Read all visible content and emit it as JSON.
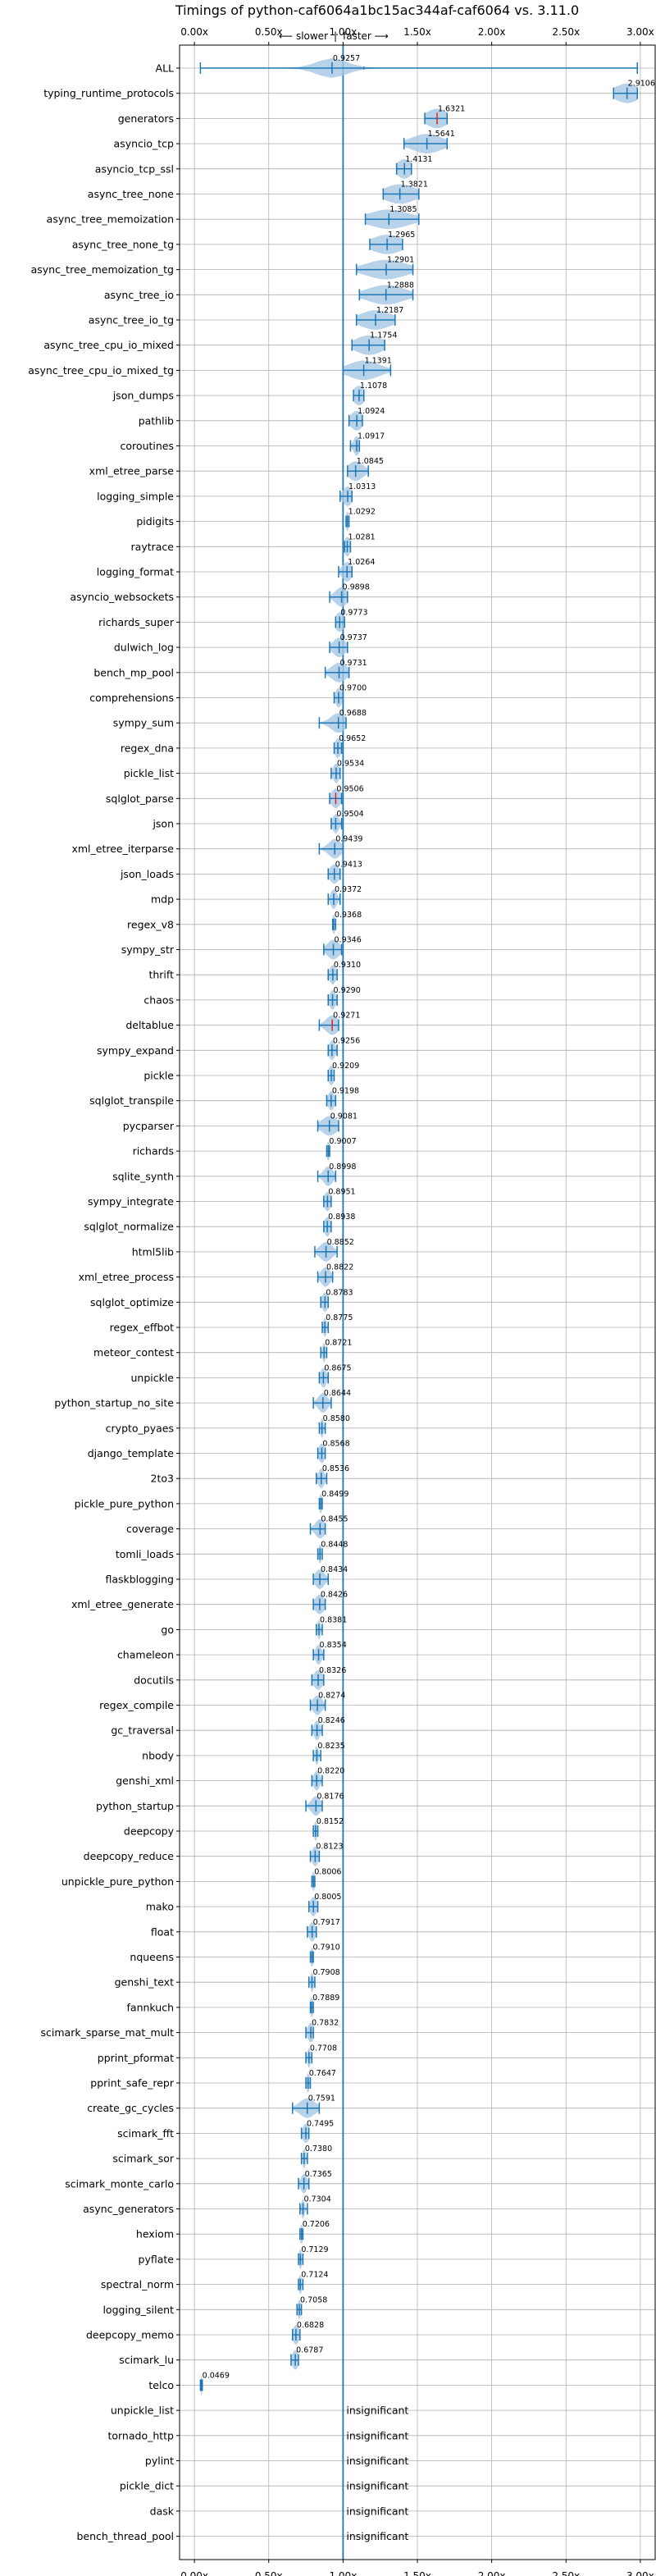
{
  "chart_data": {
    "type": "violin",
    "title": "Timings of python-caf6064a1bc15ac344af-caf6064 vs. 3.11.0",
    "subtitle_slower": "⟵ slower",
    "subtitle_separator": "|",
    "subtitle_faster": "faster ⟶",
    "xlim": [
      -0.1,
      3.1
    ],
    "xticks": [
      0.0,
      0.5,
      1.0,
      1.5,
      2.0,
      2.5,
      3.0
    ],
    "xtick_labels": [
      "0.00x",
      "0.50x",
      "1.00x",
      "1.50x",
      "2.00x",
      "2.50x",
      "3.00x"
    ],
    "reference_line": 1.0,
    "grid": true,
    "insignificant_label": "insignificant",
    "benchmarks": [
      {
        "name": "ALL",
        "value": 0.9257,
        "label": "0.9257",
        "lo": 0.04,
        "hi": 2.98,
        "spread": 0.1,
        "outliers": [
          0.9257,
          1.14
        ]
      },
      {
        "name": "typing_runtime_protocols",
        "value": 2.9106,
        "label": "2.9106",
        "lo": 2.82,
        "hi": 2.98,
        "spread": 0.08
      },
      {
        "name": "generators",
        "value": 1.6321,
        "label": "1.6321",
        "lo": 1.55,
        "hi": 1.7,
        "spread": 0.07,
        "red": true
      },
      {
        "name": "asyncio_tcp",
        "value": 1.5641,
        "label": "1.5641",
        "lo": 1.41,
        "hi": 1.7,
        "spread": 0.1
      },
      {
        "name": "asyncio_tcp_ssl",
        "value": 1.4131,
        "label": "1.4131",
        "lo": 1.36,
        "hi": 1.46,
        "spread": 0.05
      },
      {
        "name": "async_tree_none",
        "value": 1.3821,
        "label": "1.3821",
        "lo": 1.27,
        "hi": 1.51,
        "spread": 0.1
      },
      {
        "name": "async_tree_memoization",
        "value": 1.3085,
        "label": "1.3085",
        "lo": 1.15,
        "hi": 1.51,
        "spread": 0.13
      },
      {
        "name": "async_tree_none_tg",
        "value": 1.2965,
        "label": "1.2965",
        "lo": 1.18,
        "hi": 1.4,
        "spread": 0.1
      },
      {
        "name": "async_tree_memoization_tg",
        "value": 1.2901,
        "label": "1.2901",
        "lo": 1.09,
        "hi": 1.47,
        "spread": 0.13
      },
      {
        "name": "async_tree_io",
        "value": 1.2888,
        "label": "1.2888",
        "lo": 1.11,
        "hi": 1.47,
        "spread": 0.12
      },
      {
        "name": "async_tree_io_tg",
        "value": 1.2187,
        "label": "1.2187",
        "lo": 1.09,
        "hi": 1.35,
        "spread": 0.1
      },
      {
        "name": "async_tree_cpu_io_mixed",
        "value": 1.1754,
        "label": "1.1754",
        "lo": 1.06,
        "hi": 1.28,
        "spread": 0.09
      },
      {
        "name": "async_tree_cpu_io_mixed_tg",
        "value": 1.1391,
        "label": "1.1391",
        "lo": 1.0,
        "hi": 1.32,
        "spread": 0.1
      },
      {
        "name": "json_dumps",
        "value": 1.1078,
        "label": "1.1078",
        "lo": 1.07,
        "hi": 1.14,
        "spread": 0.04
      },
      {
        "name": "pathlib",
        "value": 1.0924,
        "label": "1.0924",
        "lo": 1.04,
        "hi": 1.13,
        "spread": 0.04
      },
      {
        "name": "coroutines",
        "value": 1.0917,
        "label": "1.0917",
        "lo": 1.05,
        "hi": 1.11,
        "spread": 0.02
      },
      {
        "name": "xml_etree_parse",
        "value": 1.0845,
        "label": "1.0845",
        "lo": 1.03,
        "hi": 1.17,
        "spread": 0.05
      },
      {
        "name": "logging_simple",
        "value": 1.0313,
        "label": "1.0313",
        "lo": 0.98,
        "hi": 1.06,
        "spread": 0.03
      },
      {
        "name": "pidigits",
        "value": 1.0292,
        "label": "1.0292",
        "lo": 1.02,
        "hi": 1.04,
        "spread": 0.01
      },
      {
        "name": "raytrace",
        "value": 1.0281,
        "label": "1.0281",
        "lo": 1.01,
        "hi": 1.05,
        "spread": 0.02
      },
      {
        "name": "logging_format",
        "value": 1.0264,
        "label": "1.0264",
        "lo": 0.97,
        "hi": 1.06,
        "spread": 0.03
      },
      {
        "name": "asyncio_websockets",
        "value": 0.9898,
        "label": "0.9898",
        "lo": 0.91,
        "hi": 1.03,
        "spread": 0.04
      },
      {
        "name": "richards_super",
        "value": 0.9773,
        "label": "0.9773",
        "lo": 0.95,
        "hi": 1.01,
        "spread": 0.03
      },
      {
        "name": "dulwich_log",
        "value": 0.9737,
        "label": "0.9737",
        "lo": 0.91,
        "hi": 1.03,
        "spread": 0.04
      },
      {
        "name": "bench_mp_pool",
        "value": 0.9731,
        "label": "0.9731",
        "lo": 0.88,
        "hi": 1.04,
        "spread": 0.05
      },
      {
        "name": "comprehensions",
        "value": 0.97,
        "label": "0.9700",
        "lo": 0.94,
        "hi": 1.0,
        "spread": 0.02
      },
      {
        "name": "sympy_sum",
        "value": 0.9688,
        "label": "0.9688",
        "lo": 0.84,
        "hi": 1.02,
        "spread": 0.05
      },
      {
        "name": "regex_dna",
        "value": 0.9652,
        "label": "0.9652",
        "lo": 0.94,
        "hi": 0.99,
        "spread": 0.02
      },
      {
        "name": "pickle_list",
        "value": 0.9534,
        "label": "0.9534",
        "lo": 0.92,
        "hi": 0.98,
        "spread": 0.02
      },
      {
        "name": "sqlglot_parse",
        "value": 0.9506,
        "label": "0.9506",
        "lo": 0.91,
        "hi": 0.99,
        "spread": 0.03,
        "red": true
      },
      {
        "name": "json",
        "value": 0.9504,
        "label": "0.9504",
        "lo": 0.92,
        "hi": 0.99,
        "spread": 0.02
      },
      {
        "name": "xml_etree_iterparse",
        "value": 0.9439,
        "label": "0.9439",
        "lo": 0.84,
        "hi": 1.0,
        "spread": 0.04
      },
      {
        "name": "json_loads",
        "value": 0.9413,
        "label": "0.9413",
        "lo": 0.9,
        "hi": 0.98,
        "spread": 0.03
      },
      {
        "name": "mdp",
        "value": 0.9372,
        "label": "0.9372",
        "lo": 0.9,
        "hi": 0.98,
        "spread": 0.02
      },
      {
        "name": "regex_v8",
        "value": 0.9368,
        "label": "0.9368",
        "lo": 0.93,
        "hi": 0.95,
        "spread": 0.01
      },
      {
        "name": "sympy_str",
        "value": 0.9346,
        "label": "0.9346",
        "lo": 0.87,
        "hi": 0.99,
        "spread": 0.04
      },
      {
        "name": "thrift",
        "value": 0.931,
        "label": "0.9310",
        "lo": 0.9,
        "hi": 0.96,
        "spread": 0.02
      },
      {
        "name": "chaos",
        "value": 0.929,
        "label": "0.9290",
        "lo": 0.9,
        "hi": 0.96,
        "spread": 0.02
      },
      {
        "name": "deltablue",
        "value": 0.9271,
        "label": "0.9271",
        "lo": 0.84,
        "hi": 0.97,
        "spread": 0.04,
        "red": true
      },
      {
        "name": "sympy_expand",
        "value": 0.9256,
        "label": "0.9256",
        "lo": 0.9,
        "hi": 0.96,
        "spread": 0.02
      },
      {
        "name": "pickle",
        "value": 0.9209,
        "label": "0.9209",
        "lo": 0.9,
        "hi": 0.94,
        "spread": 0.02
      },
      {
        "name": "sqlglot_transpile",
        "value": 0.9198,
        "label": "0.9198",
        "lo": 0.89,
        "hi": 0.95,
        "spread": 0.02
      },
      {
        "name": "pycparser",
        "value": 0.9081,
        "label": "0.9081",
        "lo": 0.83,
        "hi": 0.97,
        "spread": 0.05
      },
      {
        "name": "richards",
        "value": 0.9007,
        "label": "0.9007",
        "lo": 0.89,
        "hi": 0.91,
        "spread": 0.01
      },
      {
        "name": "sqlite_synth",
        "value": 0.8998,
        "label": "0.8998",
        "lo": 0.83,
        "hi": 0.95,
        "spread": 0.03
      },
      {
        "name": "sympy_integrate",
        "value": 0.8951,
        "label": "0.8951",
        "lo": 0.87,
        "hi": 0.92,
        "spread": 0.02
      },
      {
        "name": "sqlglot_normalize",
        "value": 0.8938,
        "label": "0.8938",
        "lo": 0.87,
        "hi": 0.92,
        "spread": 0.02
      },
      {
        "name": "html5lib",
        "value": 0.8852,
        "label": "0.8852",
        "lo": 0.81,
        "hi": 0.96,
        "spread": 0.04
      },
      {
        "name": "xml_etree_process",
        "value": 0.8822,
        "label": "0.8822",
        "lo": 0.83,
        "hi": 0.93,
        "spread": 0.03
      },
      {
        "name": "sqlglot_optimize",
        "value": 0.8783,
        "label": "0.8783",
        "lo": 0.85,
        "hi": 0.9,
        "spread": 0.02
      },
      {
        "name": "regex_effbot",
        "value": 0.8775,
        "label": "0.8775",
        "lo": 0.86,
        "hi": 0.9,
        "spread": 0.01
      },
      {
        "name": "meteor_contest",
        "value": 0.8721,
        "label": "0.8721",
        "lo": 0.85,
        "hi": 0.89,
        "spread": 0.01
      },
      {
        "name": "unpickle",
        "value": 0.8675,
        "label": "0.8675",
        "lo": 0.84,
        "hi": 0.9,
        "spread": 0.02
      },
      {
        "name": "python_startup_no_site",
        "value": 0.8644,
        "label": "0.8644",
        "lo": 0.8,
        "hi": 0.92,
        "spread": 0.03
      },
      {
        "name": "crypto_pyaes",
        "value": 0.858,
        "label": "0.8580",
        "lo": 0.84,
        "hi": 0.88,
        "spread": 0.01
      },
      {
        "name": "django_template",
        "value": 0.8568,
        "label": "0.8568",
        "lo": 0.83,
        "hi": 0.88,
        "spread": 0.02
      },
      {
        "name": "2to3",
        "value": 0.8536,
        "label": "0.8536",
        "lo": 0.82,
        "hi": 0.89,
        "spread": 0.02
      },
      {
        "name": "pickle_pure_python",
        "value": 0.8499,
        "label": "0.8499",
        "lo": 0.84,
        "hi": 0.86,
        "spread": 0.01
      },
      {
        "name": "coverage",
        "value": 0.8455,
        "label": "0.8455",
        "lo": 0.78,
        "hi": 0.88,
        "spread": 0.03
      },
      {
        "name": "tomli_loads",
        "value": 0.8448,
        "label": "0.8448",
        "lo": 0.83,
        "hi": 0.86,
        "spread": 0.01
      },
      {
        "name": "flaskblogging",
        "value": 0.8434,
        "label": "0.8434",
        "lo": 0.8,
        "hi": 0.9,
        "spread": 0.03
      },
      {
        "name": "xml_etree_generate",
        "value": 0.8426,
        "label": "0.8426",
        "lo": 0.8,
        "hi": 0.88,
        "spread": 0.03
      },
      {
        "name": "go",
        "value": 0.8381,
        "label": "0.8381",
        "lo": 0.82,
        "hi": 0.86,
        "spread": 0.01
      },
      {
        "name": "chameleon",
        "value": 0.8354,
        "label": "0.8354",
        "lo": 0.8,
        "hi": 0.87,
        "spread": 0.02
      },
      {
        "name": "docutils",
        "value": 0.8326,
        "label": "0.8326",
        "lo": 0.79,
        "hi": 0.87,
        "spread": 0.03
      },
      {
        "name": "regex_compile",
        "value": 0.8274,
        "label": "0.8274",
        "lo": 0.78,
        "hi": 0.88,
        "spread": 0.03
      },
      {
        "name": "gc_traversal",
        "value": 0.8246,
        "label": "0.8246",
        "lo": 0.79,
        "hi": 0.86,
        "spread": 0.02
      },
      {
        "name": "nbody",
        "value": 0.8235,
        "label": "0.8235",
        "lo": 0.8,
        "hi": 0.85,
        "spread": 0.01
      },
      {
        "name": "genshi_xml",
        "value": 0.822,
        "label": "0.8220",
        "lo": 0.79,
        "hi": 0.86,
        "spread": 0.02
      },
      {
        "name": "python_startup",
        "value": 0.8176,
        "label": "0.8176",
        "lo": 0.75,
        "hi": 0.86,
        "spread": 0.03
      },
      {
        "name": "deepcopy",
        "value": 0.8152,
        "label": "0.8152",
        "lo": 0.8,
        "hi": 0.83,
        "spread": 0.01
      },
      {
        "name": "deepcopy_reduce",
        "value": 0.8123,
        "label": "0.8123",
        "lo": 0.78,
        "hi": 0.84,
        "spread": 0.02
      },
      {
        "name": "unpickle_pure_python",
        "value": 0.8006,
        "label": "0.8006",
        "lo": 0.79,
        "hi": 0.81,
        "spread": 0.01
      },
      {
        "name": "mako",
        "value": 0.8005,
        "label": "0.8005",
        "lo": 0.77,
        "hi": 0.83,
        "spread": 0.02
      },
      {
        "name": "float",
        "value": 0.7917,
        "label": "0.7917",
        "lo": 0.76,
        "hi": 0.82,
        "spread": 0.02
      },
      {
        "name": "nqueens",
        "value": 0.791,
        "label": "0.7910",
        "lo": 0.78,
        "hi": 0.8,
        "spread": 0.01
      },
      {
        "name": "genshi_text",
        "value": 0.7908,
        "label": "0.7908",
        "lo": 0.77,
        "hi": 0.81,
        "spread": 0.01
      },
      {
        "name": "fannkuch",
        "value": 0.7889,
        "label": "0.7889",
        "lo": 0.78,
        "hi": 0.8,
        "spread": 0.01
      },
      {
        "name": "scimark_sparse_mat_mult",
        "value": 0.7832,
        "label": "0.7832",
        "lo": 0.75,
        "hi": 0.8,
        "spread": 0.02
      },
      {
        "name": "pprint_pformat",
        "value": 0.7708,
        "label": "0.7708",
        "lo": 0.75,
        "hi": 0.79,
        "spread": 0.01
      },
      {
        "name": "pprint_safe_repr",
        "value": 0.7647,
        "label": "0.7647",
        "lo": 0.75,
        "hi": 0.78,
        "spread": 0.01
      },
      {
        "name": "create_gc_cycles",
        "value": 0.7591,
        "label": "0.7591",
        "lo": 0.66,
        "hi": 0.84,
        "spread": 0.05
      },
      {
        "name": "scimark_fft",
        "value": 0.7495,
        "label": "0.7495",
        "lo": 0.72,
        "hi": 0.77,
        "spread": 0.02
      },
      {
        "name": "scimark_sor",
        "value": 0.738,
        "label": "0.7380",
        "lo": 0.72,
        "hi": 0.76,
        "spread": 0.01
      },
      {
        "name": "scimark_monte_carlo",
        "value": 0.7365,
        "label": "0.7365",
        "lo": 0.7,
        "hi": 0.77,
        "spread": 0.02
      },
      {
        "name": "async_generators",
        "value": 0.7304,
        "label": "0.7304",
        "lo": 0.71,
        "hi": 0.76,
        "spread": 0.01
      },
      {
        "name": "hexiom",
        "value": 0.7206,
        "label": "0.7206",
        "lo": 0.71,
        "hi": 0.73,
        "spread": 0.01
      },
      {
        "name": "pyflate",
        "value": 0.7129,
        "label": "0.7129",
        "lo": 0.7,
        "hi": 0.73,
        "spread": 0.01
      },
      {
        "name": "spectral_norm",
        "value": 0.7124,
        "label": "0.7124",
        "lo": 0.7,
        "hi": 0.73,
        "spread": 0.01
      },
      {
        "name": "logging_silent",
        "value": 0.7058,
        "label": "0.7058",
        "lo": 0.69,
        "hi": 0.72,
        "spread": 0.01
      },
      {
        "name": "deepcopy_memo",
        "value": 0.6828,
        "label": "0.6828",
        "lo": 0.66,
        "hi": 0.71,
        "spread": 0.02
      },
      {
        "name": "scimark_lu",
        "value": 0.6787,
        "label": "0.6787",
        "lo": 0.65,
        "hi": 0.7,
        "spread": 0.02
      },
      {
        "name": "telco",
        "value": 0.0469,
        "label": "0.0469",
        "lo": 0.04,
        "hi": 0.053,
        "spread": 0.004
      },
      {
        "name": "unpickle_list",
        "insignificant": true
      },
      {
        "name": "tornado_http",
        "insignificant": true
      },
      {
        "name": "pylint",
        "insignificant": true
      },
      {
        "name": "pickle_dict",
        "insignificant": true
      },
      {
        "name": "dask",
        "insignificant": true
      },
      {
        "name": "bench_thread_pool",
        "insignificant": true
      }
    ],
    "colors": {
      "violin": "#a6c8e4",
      "line": "#1f77b4",
      "median_red": "#d62728",
      "grid": "#b0b0b0",
      "text": "#000000"
    }
  }
}
